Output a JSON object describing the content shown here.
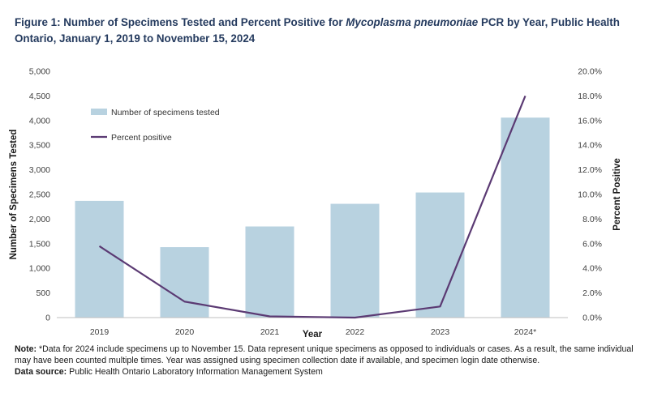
{
  "title": {
    "part1": "Figure 1: Number of Specimens Tested and Percent Positive for ",
    "italic": "Mycoplasma pneumoniae",
    "part2": " PCR by Year, Public Health Ontario, January 1, 2019 to November 15, 2024"
  },
  "notes": {
    "note_label": "Note:",
    "note_text": " *Data for 2024 include specimens up to November 15. Data represent unique specimens as opposed to individuals or cases. As a result, the same individual may have been counted multiple times. Year was assigned using specimen collection date if available, and specimen login date otherwise.",
    "source_label": "Data source:",
    "source_text": " Public Health Ontario Laboratory Information Management System"
  },
  "colors": {
    "bar": "#b8d2e0",
    "line": "#5b3a73",
    "axis": "#bfbfbf"
  },
  "chart_data": {
    "type": "bar",
    "categories": [
      "2019",
      "2020",
      "2021",
      "2022",
      "2023",
      "2024*"
    ],
    "xlabel": "Year",
    "ylabel": "Number of Specimens Tested",
    "y2label": "Percent Positive",
    "ylim": [
      0,
      5000
    ],
    "y2lim": [
      0,
      20
    ],
    "yticks": [
      "0",
      "500",
      "1,000",
      "1,500",
      "2,000",
      "2,500",
      "3,000",
      "3,500",
      "4,000",
      "4,500",
      "5,000"
    ],
    "y2ticks": [
      "0.0%",
      "2.0%",
      "4.0%",
      "6.0%",
      "8.0%",
      "10.0%",
      "12.0%",
      "14.0%",
      "16.0%",
      "18.0%",
      "20.0%"
    ],
    "grid": false,
    "legend_position": "top-left",
    "series": [
      {
        "name": "Number of specimens tested",
        "type": "bar",
        "axis": "left",
        "values": [
          2370,
          1430,
          1850,
          2310,
          2540,
          4060
        ]
      },
      {
        "name": "Percent positive",
        "type": "line",
        "axis": "right",
        "values": [
          5.8,
          1.3,
          0.1,
          0.0,
          0.9,
          18.0
        ]
      }
    ]
  }
}
